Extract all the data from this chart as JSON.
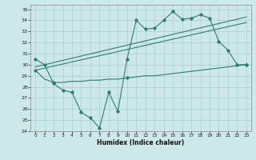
{
  "xlabel": "Humidex (Indice chaleur)",
  "ylabel": "",
  "xlim": [
    -0.5,
    23.5
  ],
  "ylim": [
    24,
    35.4
  ],
  "yticks": [
    24,
    25,
    26,
    27,
    28,
    29,
    30,
    31,
    32,
    33,
    34,
    35
  ],
  "xticks": [
    0,
    1,
    2,
    3,
    4,
    5,
    6,
    7,
    8,
    9,
    10,
    11,
    12,
    13,
    14,
    15,
    16,
    17,
    18,
    19,
    20,
    21,
    22,
    23
  ],
  "line_color": "#2e7d72",
  "bg_color": "#cce8e8",
  "grid_color": "#aad4d4",
  "series": {
    "main": {
      "x": [
        0,
        1,
        2,
        3,
        4,
        5,
        6,
        7,
        8,
        9,
        10,
        11,
        12,
        13,
        14,
        15,
        16,
        17,
        18,
        19,
        20,
        21,
        22,
        23
      ],
      "y": [
        30.5,
        30.0,
        28.3,
        27.7,
        27.5,
        25.7,
        25.2,
        24.3,
        27.5,
        25.8,
        30.5,
        34.0,
        33.2,
        33.3,
        34.0,
        34.8,
        34.1,
        34.2,
        34.5,
        34.2,
        32.1,
        31.3,
        30.0,
        30.0
      ]
    },
    "reg_upper": {
      "x": [
        0,
        23
      ],
      "y": [
        29.8,
        34.3
      ]
    },
    "reg_middle": {
      "x": [
        0,
        23
      ],
      "y": [
        29.5,
        33.8
      ]
    },
    "lower_line": {
      "x": [
        0,
        1,
        2,
        3,
        4,
        5,
        6,
        7,
        8,
        9,
        10,
        11,
        12,
        13,
        14,
        15,
        16,
        17,
        18,
        19,
        20,
        21,
        22,
        23
      ],
      "y": [
        29.5,
        28.7,
        28.4,
        28.4,
        28.5,
        28.5,
        28.6,
        28.6,
        28.7,
        28.7,
        28.8,
        28.9,
        29.0,
        29.0,
        29.1,
        29.2,
        29.3,
        29.4,
        29.5,
        29.6,
        29.7,
        29.8,
        29.9,
        30.0
      ]
    }
  }
}
